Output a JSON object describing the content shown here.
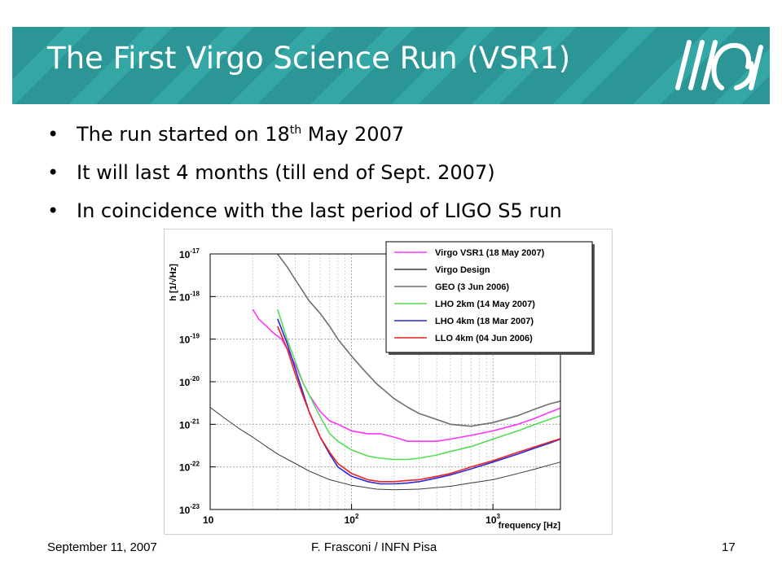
{
  "slide": {
    "title": "The First Virgo Science Run (VSR1)",
    "bullets": [
      {
        "text": "The run started on 18",
        "sup": "th",
        "after": " May 2007"
      },
      {
        "text": "It will last 4 months (till end of Sept. 2007)"
      },
      {
        "text": "In coincidence with the last period of LIGO S5 run"
      }
    ],
    "bullet_glyph": "•",
    "footer": {
      "date": "September 11, 2007",
      "author": "F. Frasconi / INFN Pisa",
      "page": "17"
    },
    "banner_colors": [
      "#2b9695",
      "#34a7a5"
    ],
    "logo_icon": "virgo-logo"
  },
  "chart_data": {
    "type": "line",
    "title": "",
    "xlabel": "frequency [Hz]",
    "ylabel": "h [1/√Hz]",
    "xscale": "log",
    "yscale": "log",
    "xlim": [
      10,
      3000
    ],
    "ylim": [
      1e-23,
      1e-17
    ],
    "x_ticks": [
      {
        "value": 10,
        "base": "10",
        "exp": ""
      },
      {
        "value": 100,
        "base": "10",
        "exp": "2"
      },
      {
        "value": 1000,
        "base": "10",
        "exp": "3"
      }
    ],
    "y_ticks": [
      {
        "value": 1e-17,
        "base": "10",
        "exp": "-17"
      },
      {
        "value": 1e-18,
        "base": "10",
        "exp": "-18"
      },
      {
        "value": 1e-19,
        "base": "10",
        "exp": "-19"
      },
      {
        "value": 1e-20,
        "base": "10",
        "exp": "-20"
      },
      {
        "value": 1e-21,
        "base": "10",
        "exp": "-21"
      },
      {
        "value": 1e-22,
        "base": "10",
        "exp": "-22"
      },
      {
        "value": 1e-23,
        "base": "10",
        "exp": "-23"
      }
    ],
    "grid": true,
    "legend_position": "top-right",
    "series": [
      {
        "name": "Virgo VSR1 (18 May 2007)",
        "color": "#ff33ff",
        "x": [
          20,
          22,
          25,
          28,
          32,
          36,
          40,
          45,
          50,
          60,
          70,
          80,
          100,
          130,
          160,
          200,
          250,
          300,
          400,
          500,
          700,
          1000,
          1500,
          2000,
          2500,
          3000
        ],
        "y": [
          5e-19,
          3e-19,
          2e-19,
          1.4e-19,
          1e-19,
          5e-20,
          2.5e-20,
          1e-20,
          5e-21,
          2e-21,
          1.2e-21,
          1e-21,
          7e-22,
          6e-22,
          6e-22,
          5e-22,
          4e-22,
          4e-22,
          4e-22,
          4.5e-22,
          5.5e-22,
          7e-22,
          1e-21,
          1.4e-21,
          1.9e-21,
          2.4e-21
        ]
      },
      {
        "name": "Virgo Design",
        "color": "#3a3a3a",
        "x": [
          10,
          13,
          16,
          20,
          25,
          30,
          40,
          50,
          70,
          100,
          150,
          200,
          300,
          500,
          700,
          1000,
          1500,
          2000,
          3000
        ],
        "y": [
          2.5e-21,
          1.3e-21,
          8e-22,
          5e-22,
          3e-22,
          2e-22,
          1.2e-22,
          8e-23,
          5e-23,
          3.7e-23,
          3e-23,
          2.9e-23,
          3e-23,
          3.5e-23,
          4.2e-23,
          5e-23,
          7e-23,
          9e-23,
          1.3e-22
        ]
      },
      {
        "name": "GEO (3 Jun 2006)",
        "color": "#6e6e6e",
        "x": [
          30,
          35,
          40,
          50,
          60,
          70,
          80,
          100,
          120,
          150,
          200,
          250,
          300,
          400,
          500,
          700,
          1000,
          1500,
          2000,
          2500,
          3000
        ],
        "y": [
          1e-17,
          5e-18,
          2.5e-18,
          8e-19,
          4e-19,
          2e-19,
          1e-19,
          4e-20,
          2e-20,
          9e-21,
          4e-21,
          2.5e-21,
          1.8e-21,
          1.3e-21,
          1e-21,
          9e-22,
          1.1e-21,
          1.6e-21,
          2.3e-21,
          3e-21,
          3.5e-21
        ]
      },
      {
        "name": "LHO 2km (14 May 2007)",
        "color": "#55dd55",
        "x": [
          30,
          35,
          40,
          45,
          50,
          60,
          70,
          80,
          100,
          130,
          160,
          200,
          250,
          300,
          400,
          500,
          700,
          1000,
          1500,
          2000,
          2500,
          3000
        ],
        "y": [
          5e-19,
          1e-19,
          3e-20,
          1e-20,
          5e-21,
          1.5e-21,
          6e-22,
          4e-22,
          2.5e-22,
          1.8e-22,
          1.6e-22,
          1.5e-22,
          1.5e-22,
          1.6e-22,
          1.9e-22,
          2.3e-22,
          3e-22,
          4.5e-22,
          7e-22,
          1e-21,
          1.3e-21,
          1.6e-21
        ]
      },
      {
        "name": "LHO 4km (18 Mar 2007)",
        "color": "#2a2ad8",
        "x": [
          30,
          35,
          40,
          45,
          50,
          60,
          70,
          80,
          100,
          130,
          160,
          200,
          250,
          300,
          400,
          500,
          700,
          1000,
          1500,
          2000,
          2500,
          3000
        ],
        "y": [
          3e-19,
          8e-20,
          2e-20,
          6e-21,
          2e-21,
          5e-22,
          2e-22,
          1e-22,
          6e-23,
          4.5e-23,
          4e-23,
          4e-23,
          4.2e-23,
          4.5e-23,
          5.5e-23,
          6.5e-23,
          9e-23,
          1.3e-22,
          2e-22,
          2.8e-22,
          3.6e-22,
          4.5e-22
        ]
      },
      {
        "name": "LLO 4km (04 Jun 2006)",
        "color": "#ee2222",
        "x": [
          30,
          35,
          40,
          45,
          50,
          60,
          70,
          80,
          100,
          130,
          160,
          200,
          250,
          300,
          400,
          500,
          700,
          1000,
          1500,
          2000,
          2500,
          3000
        ],
        "y": [
          2e-19,
          6e-20,
          1.5e-20,
          5e-21,
          2e-21,
          5e-22,
          2.2e-22,
          1.2e-22,
          7e-23,
          5e-23,
          4.5e-23,
          4.5e-23,
          4.8e-23,
          5e-23,
          6e-23,
          7e-23,
          1e-22,
          1.4e-22,
          2.2e-22,
          3e-22,
          3.8e-22,
          4.6e-22
        ]
      }
    ]
  }
}
